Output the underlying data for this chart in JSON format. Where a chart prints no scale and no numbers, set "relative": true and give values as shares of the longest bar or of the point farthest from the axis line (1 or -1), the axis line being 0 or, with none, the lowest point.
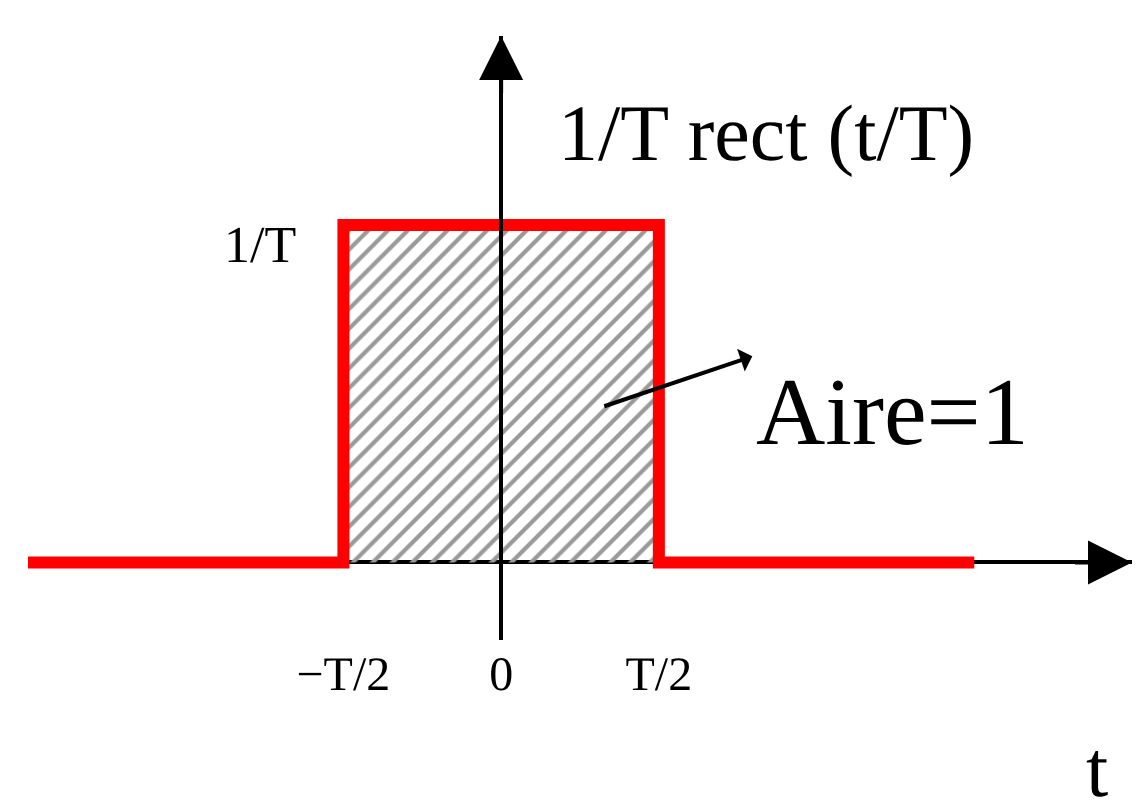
{
  "chart_data": {
    "type": "step",
    "relative": true,
    "xlabel": "t",
    "ylabel": "1/T rect (t/T)",
    "categories": [
      null,
      null,
      "−T/2",
      "0",
      "T/2",
      null,
      null
    ],
    "series": [
      {
        "type": "area",
        "color": "#9a9a9a",
        "values": [
          null,
          null,
          1,
          1,
          0,
          null,
          null
        ]
      },
      {
        "color": "#ff0000",
        "values": [
          0,
          0,
          1,
          1,
          0,
          0,
          0
        ]
      }
    ],
    "annotations": [
      "1/T",
      "Aire=1"
    ]
  }
}
